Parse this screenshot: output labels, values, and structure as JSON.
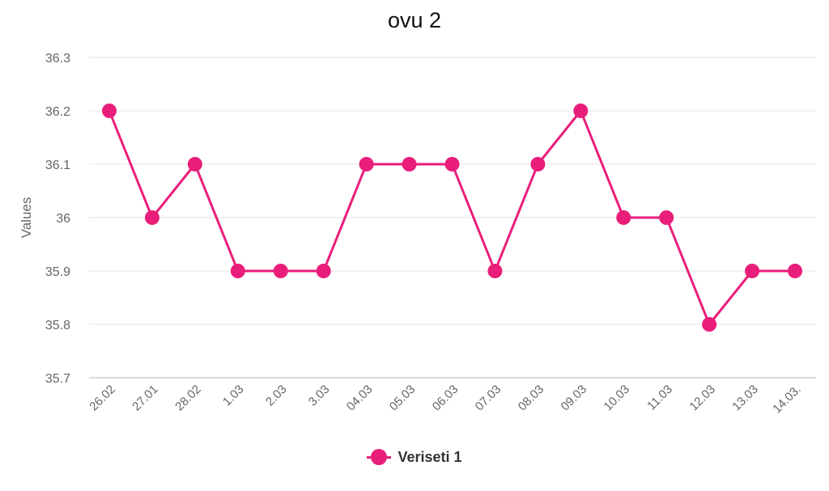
{
  "chart_data": {
    "type": "line",
    "title": "ovu 2",
    "ylabel": "Values",
    "xlabel": "",
    "categories": [
      "26.02",
      "27.01",
      "28.02",
      "1.03",
      "2.03",
      "3.03",
      "04.03",
      "05.03",
      "06.03",
      "07.03",
      "08.03",
      "09.03",
      "10.03",
      "11.03",
      "12.03",
      "13.03",
      "14.03."
    ],
    "series": [
      {
        "name": "Veriseti 1",
        "color": "#e91e7a",
        "values": [
          36.2,
          36.0,
          36.1,
          35.9,
          35.9,
          35.9,
          36.1,
          36.1,
          36.1,
          35.9,
          36.1,
          36.2,
          36.0,
          36.0,
          35.8,
          35.9,
          35.9
        ]
      }
    ],
    "ylim": [
      35.7,
      36.3
    ],
    "yticks": [
      "35.7",
      "35.8",
      "35.9",
      "36",
      "36.1",
      "36.2",
      "36.3"
    ],
    "grid": true,
    "legend": "bottom-center"
  }
}
